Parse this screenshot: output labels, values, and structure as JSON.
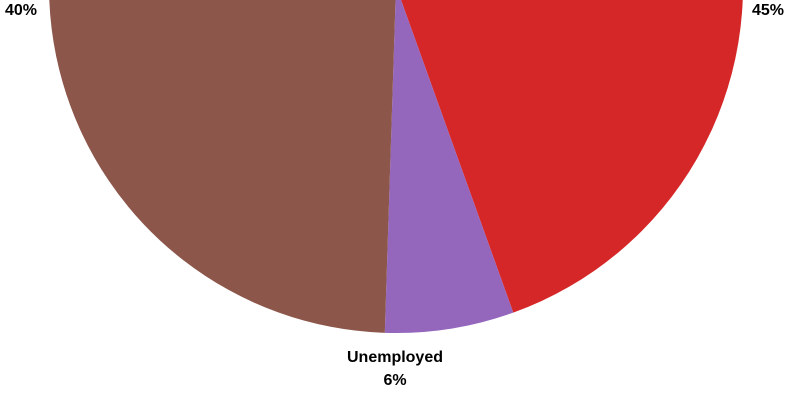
{
  "chart_data": {
    "type": "pie",
    "slices": [
      {
        "label": "",
        "value": 45,
        "value_label": "45%",
        "color": "#d62728"
      },
      {
        "label": "Unemployed",
        "value": 6,
        "value_label": "6%",
        "color": "#9467bd"
      },
      {
        "label": "",
        "value": 40,
        "value_label": "40%",
        "color": "#8c564b"
      }
    ]
  }
}
